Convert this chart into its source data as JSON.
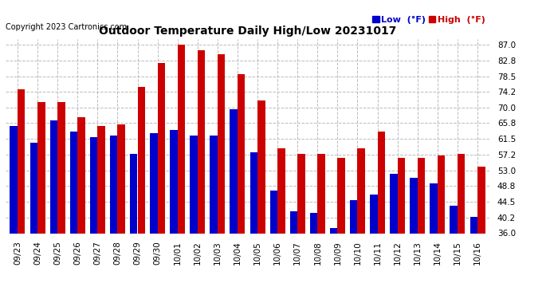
{
  "title": "Outdoor Temperature Daily High/Low 20231017",
  "copyright": "Copyright 2023 Cartronics.com",
  "legend_low_label": "Low  (°F)",
  "legend_high_label": "High  (°F)",
  "legend_low_color": "#0000cc",
  "legend_high_color": "#cc0000",
  "bar_low_color": "#0000cc",
  "bar_high_color": "#cc0000",
  "background_color": "#ffffff",
  "plot_bg_color": "#ffffff",
  "ylim": [
    36.0,
    88.6
  ],
  "ybase": 36.0,
  "yticks": [
    36.0,
    40.2,
    44.5,
    48.8,
    53.0,
    57.2,
    61.5,
    65.8,
    70.0,
    74.2,
    78.5,
    82.8,
    87.0
  ],
  "grid_color": "#bbbbbb",
  "dates": [
    "09/23",
    "09/24",
    "09/25",
    "09/26",
    "09/27",
    "09/28",
    "09/29",
    "09/30",
    "10/01",
    "10/02",
    "10/03",
    "10/04",
    "10/05",
    "10/06",
    "10/07",
    "10/08",
    "10/09",
    "10/10",
    "10/11",
    "10/12",
    "10/13",
    "10/14",
    "10/15",
    "10/16"
  ],
  "highs": [
    75.0,
    71.5,
    71.5,
    67.5,
    65.0,
    65.5,
    75.5,
    82.0,
    87.0,
    85.5,
    84.5,
    79.0,
    72.0,
    59.0,
    57.5,
    57.5,
    56.5,
    59.0,
    63.5,
    56.5,
    56.5,
    57.0,
    57.5,
    54.0
  ],
  "lows": [
    65.0,
    60.5,
    66.5,
    63.5,
    62.0,
    62.5,
    57.5,
    63.0,
    64.0,
    62.5,
    62.5,
    69.5,
    58.0,
    47.5,
    42.0,
    41.5,
    37.5,
    45.0,
    46.5,
    52.0,
    51.0,
    49.5,
    43.5,
    40.5
  ],
  "bar_width": 0.38,
  "figsize": [
    6.9,
    3.75
  ],
  "dpi": 100,
  "title_fontsize": 10,
  "tick_fontsize": 7.5,
  "copyright_fontsize": 7
}
